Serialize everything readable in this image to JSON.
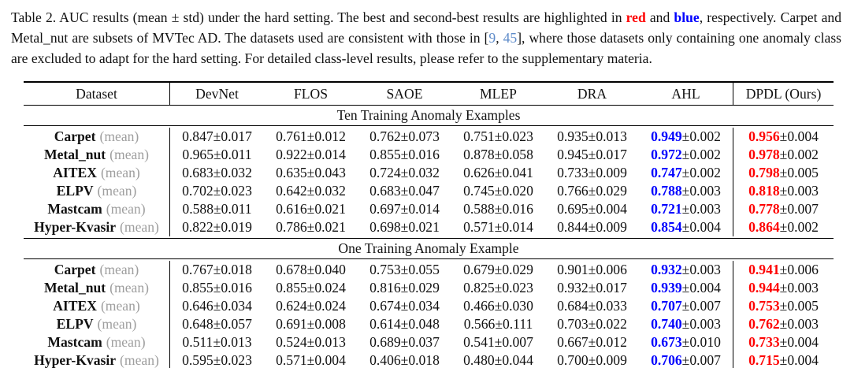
{
  "colors": {
    "best": "#fe0000",
    "second_best": "#0000fe",
    "citation": "#5e8bc9",
    "mean_tag": "#9e9e9e"
  },
  "caption": {
    "segments": [
      {
        "t": "Table 2.  AUC results (mean ± std) under the hard setting.  The best and second-best results are highlighted in ",
        "s": "plain"
      },
      {
        "t": "red",
        "s": "red"
      },
      {
        "t": " and ",
        "s": "plain"
      },
      {
        "t": "blue",
        "s": "blue"
      },
      {
        "t": ", respectively. Carpet and Metal_nut are subsets of MVTec AD. The datasets used are consistent with those in  [",
        "s": "plain"
      },
      {
        "t": "9",
        "s": "cite"
      },
      {
        "t": ", ",
        "s": "plain"
      },
      {
        "t": "45",
        "s": "cite"
      },
      {
        "t": "], where those datasets only containing one anomaly class are excluded to adapt for the hard setting. For detailed class-level results, please refer to the supplementary materia.",
        "s": "plain"
      }
    ]
  },
  "table": {
    "columns": [
      "Dataset",
      "DevNet",
      "FLOS",
      "SAOE",
      "MLEP",
      "DRA",
      "AHL",
      "DPDL (Ours)"
    ],
    "col_styles": [
      "label",
      "plain",
      "plain",
      "plain",
      "plain",
      "plain",
      "second",
      "best"
    ],
    "row_label_suffix": "(mean)",
    "sections": [
      {
        "title": "Ten Training Anomaly Examples",
        "rows": [
          {
            "dataset": "Carpet",
            "values": [
              "0.847±0.017",
              "0.761±0.012",
              "0.762±0.073",
              "0.751±0.023",
              "0.935±0.013",
              "0.949±0.002",
              "0.956±0.004"
            ]
          },
          {
            "dataset": "Metal_nut",
            "values": [
              "0.965±0.011",
              "0.922±0.014",
              "0.855±0.016",
              "0.878±0.058",
              "0.945±0.017",
              "0.972±0.002",
              "0.978±0.002"
            ]
          },
          {
            "dataset": "AITEX",
            "values": [
              "0.683±0.032",
              "0.635±0.043",
              "0.724±0.032",
              "0.626±0.041",
              "0.733±0.009",
              "0.747±0.002",
              "0.798±0.005"
            ]
          },
          {
            "dataset": "ELPV",
            "values": [
              "0.702±0.023",
              "0.642±0.032",
              "0.683±0.047",
              "0.745±0.020",
              "0.766±0.029",
              "0.788±0.003",
              "0.818±0.003"
            ]
          },
          {
            "dataset": "Mastcam",
            "values": [
              "0.588±0.011",
              "0.616±0.021",
              "0.697±0.014",
              "0.588±0.016",
              "0.695±0.004",
              "0.721±0.003",
              "0.778±0.007"
            ]
          },
          {
            "dataset": "Hyper-Kvasir",
            "values": [
              "0.822±0.019",
              "0.786±0.021",
              "0.698±0.021",
              "0.571±0.014",
              "0.844±0.009",
              "0.854±0.004",
              "0.864±0.002"
            ]
          }
        ]
      },
      {
        "title": "One Training Anomaly Example",
        "rows": [
          {
            "dataset": "Carpet",
            "values": [
              "0.767±0.018",
              "0.678±0.040",
              "0.753±0.055",
              "0.679±0.029",
              "0.901±0.006",
              "0.932±0.003",
              "0.941±0.006"
            ]
          },
          {
            "dataset": "Metal_nut",
            "values": [
              "0.855±0.016",
              "0.855±0.024",
              "0.816±0.029",
              "0.825±0.023",
              "0.932±0.017",
              "0.939±0.004",
              "0.944±0.003"
            ]
          },
          {
            "dataset": "AITEX",
            "values": [
              "0.646±0.034",
              "0.624±0.024",
              "0.674±0.034",
              "0.466±0.030",
              "0.684±0.033",
              "0.707±0.007",
              "0.753±0.005"
            ]
          },
          {
            "dataset": "ELPV",
            "values": [
              "0.648±0.057",
              "0.691±0.008",
              "0.614±0.048",
              "0.566±0.111",
              "0.703±0.022",
              "0.740±0.003",
              "0.762±0.003"
            ]
          },
          {
            "dataset": "Mastcam",
            "values": [
              "0.511±0.013",
              "0.524±0.013",
              "0.689±0.037",
              "0.541±0.007",
              "0.667±0.012",
              "0.673±0.010",
              "0.733±0.004"
            ]
          },
          {
            "dataset": "Hyper-Kvasir",
            "values": [
              "0.595±0.023",
              "0.571±0.004",
              "0.406±0.018",
              "0.480±0.044",
              "0.700±0.009",
              "0.706±0.007",
              "0.715±0.004"
            ]
          }
        ]
      }
    ]
  }
}
